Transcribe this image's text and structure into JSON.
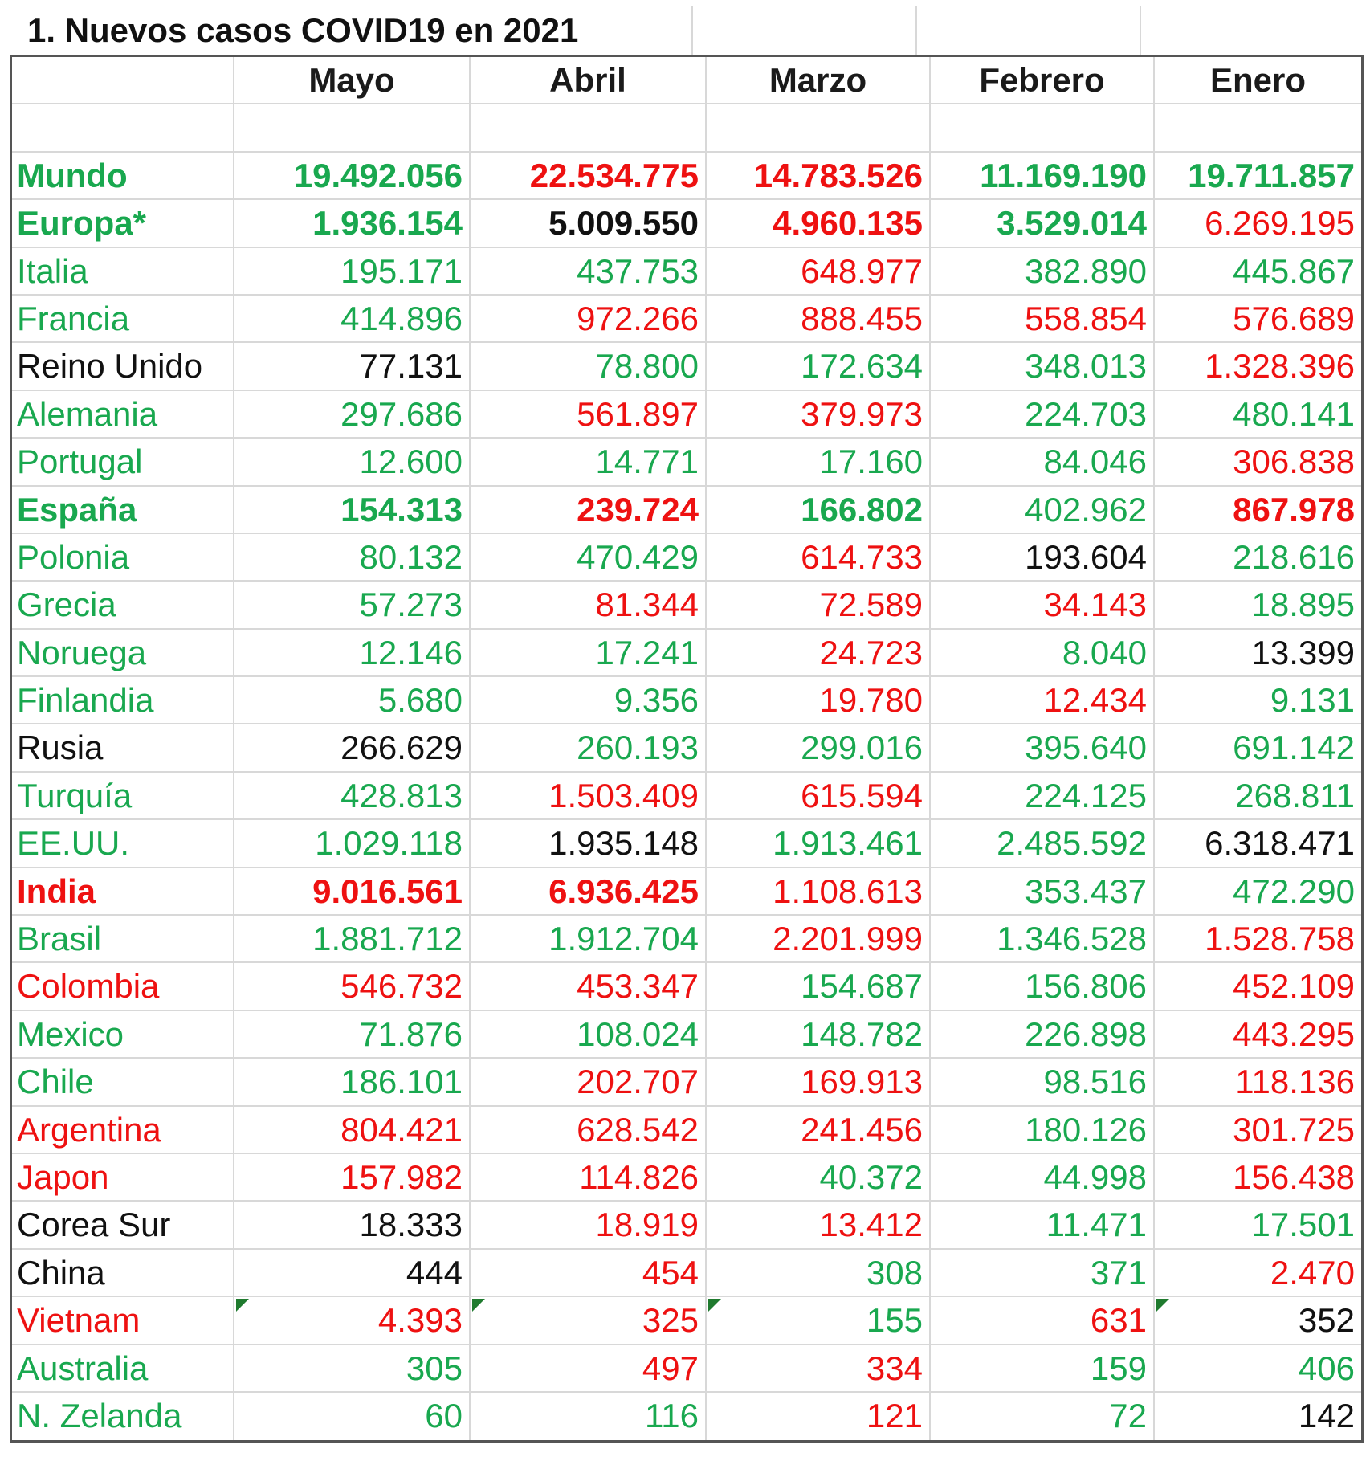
{
  "title": "1. Nuevos casos COVID19 en 2021",
  "columns": [
    "",
    "Mayo",
    "Abril",
    "Marzo",
    "Febrero",
    "Enero"
  ],
  "colors": {
    "green": "#19a84f",
    "red": "#ee1111",
    "black": "#111111"
  },
  "rows": [
    {
      "country": "Mundo",
      "country_color": "g",
      "bold": true,
      "values": [
        "19.492.056",
        "22.534.775",
        "14.783.526",
        "11.169.190",
        "19.711.857"
      ],
      "colors": [
        "g",
        "r",
        "r",
        "g",
        "g"
      ],
      "bolds": [
        true,
        true,
        true,
        true,
        true
      ]
    },
    {
      "country": "Europa*",
      "country_color": "g",
      "bold": true,
      "values": [
        "1.936.154",
        "5.009.550",
        "4.960.135",
        "3.529.014",
        "6.269.195"
      ],
      "colors": [
        "g",
        "k",
        "r",
        "g",
        "r"
      ],
      "bolds": [
        true,
        true,
        true,
        true,
        false
      ]
    },
    {
      "country": "Italia",
      "country_color": "g",
      "bold": false,
      "values": [
        "195.171",
        "437.753",
        "648.977",
        "382.890",
        "445.867"
      ],
      "colors": [
        "g",
        "g",
        "r",
        "g",
        "g"
      ],
      "bolds": [
        false,
        false,
        false,
        false,
        false
      ]
    },
    {
      "country": "Francia",
      "country_color": "g",
      "bold": false,
      "values": [
        "414.896",
        "972.266",
        "888.455",
        "558.854",
        "576.689"
      ],
      "colors": [
        "g",
        "r",
        "r",
        "r",
        "r"
      ],
      "bolds": [
        false,
        false,
        false,
        false,
        false
      ]
    },
    {
      "country": "Reino Unido",
      "country_color": "k",
      "bold": false,
      "values": [
        "77.131",
        "78.800",
        "172.634",
        "348.013",
        "1.328.396"
      ],
      "colors": [
        "k",
        "g",
        "g",
        "g",
        "r"
      ],
      "bolds": [
        false,
        false,
        false,
        false,
        false
      ]
    },
    {
      "country": "Alemania",
      "country_color": "g",
      "bold": false,
      "values": [
        "297.686",
        "561.897",
        "379.973",
        "224.703",
        "480.141"
      ],
      "colors": [
        "g",
        "r",
        "r",
        "g",
        "g"
      ],
      "bolds": [
        false,
        false,
        false,
        false,
        false
      ]
    },
    {
      "country": "Portugal",
      "country_color": "g",
      "bold": false,
      "values": [
        "12.600",
        "14.771",
        "17.160",
        "84.046",
        "306.838"
      ],
      "colors": [
        "g",
        "g",
        "g",
        "g",
        "r"
      ],
      "bolds": [
        false,
        false,
        false,
        false,
        false
      ]
    },
    {
      "country": "España",
      "country_color": "g",
      "bold": true,
      "values": [
        "154.313",
        "239.724",
        "166.802",
        "402.962",
        "867.978"
      ],
      "colors": [
        "g",
        "r",
        "g",
        "g",
        "r"
      ],
      "bolds": [
        true,
        true,
        true,
        false,
        true
      ]
    },
    {
      "country": "Polonia",
      "country_color": "g",
      "bold": false,
      "values": [
        "80.132",
        "470.429",
        "614.733",
        "193.604",
        "218.616"
      ],
      "colors": [
        "g",
        "g",
        "r",
        "k",
        "g"
      ],
      "bolds": [
        false,
        false,
        false,
        false,
        false
      ]
    },
    {
      "country": "Grecia",
      "country_color": "g",
      "bold": false,
      "values": [
        "57.273",
        "81.344",
        "72.589",
        "34.143",
        "18.895"
      ],
      "colors": [
        "g",
        "r",
        "r",
        "r",
        "g"
      ],
      "bolds": [
        false,
        false,
        false,
        false,
        false
      ]
    },
    {
      "country": "Noruega",
      "country_color": "g",
      "bold": false,
      "values": [
        "12.146",
        "17.241",
        "24.723",
        "8.040",
        "13.399"
      ],
      "colors": [
        "g",
        "g",
        "r",
        "g",
        "k"
      ],
      "bolds": [
        false,
        false,
        false,
        false,
        false
      ]
    },
    {
      "country": "Finlandia",
      "country_color": "g",
      "bold": false,
      "values": [
        "5.680",
        "9.356",
        "19.780",
        "12.434",
        "9.131"
      ],
      "colors": [
        "g",
        "g",
        "r",
        "r",
        "g"
      ],
      "bolds": [
        false,
        false,
        false,
        false,
        false
      ]
    },
    {
      "country": "Rusia",
      "country_color": "k",
      "bold": false,
      "values": [
        "266.629",
        "260.193",
        "299.016",
        "395.640",
        "691.142"
      ],
      "colors": [
        "k",
        "g",
        "g",
        "g",
        "g"
      ],
      "bolds": [
        false,
        false,
        false,
        false,
        false
      ]
    },
    {
      "country": "Turquía",
      "country_color": "g",
      "bold": false,
      "values": [
        "428.813",
        "1.503.409",
        "615.594",
        "224.125",
        "268.811"
      ],
      "colors": [
        "g",
        "r",
        "r",
        "g",
        "g"
      ],
      "bolds": [
        false,
        false,
        false,
        false,
        false
      ]
    },
    {
      "country": "EE.UU.",
      "country_color": "g",
      "bold": false,
      "values": [
        "1.029.118",
        "1.935.148",
        "1.913.461",
        "2.485.592",
        "6.318.471"
      ],
      "colors": [
        "g",
        "k",
        "g",
        "g",
        "k"
      ],
      "bolds": [
        false,
        false,
        false,
        false,
        false
      ]
    },
    {
      "country": "India",
      "country_color": "r",
      "bold": true,
      "values": [
        "9.016.561",
        "6.936.425",
        "1.108.613",
        "353.437",
        "472.290"
      ],
      "colors": [
        "r",
        "r",
        "r",
        "g",
        "g"
      ],
      "bolds": [
        true,
        true,
        false,
        false,
        false
      ]
    },
    {
      "country": "Brasil",
      "country_color": "g",
      "bold": false,
      "values": [
        "1.881.712",
        "1.912.704",
        "2.201.999",
        "1.346.528",
        "1.528.758"
      ],
      "colors": [
        "g",
        "g",
        "r",
        "g",
        "r"
      ],
      "bolds": [
        false,
        false,
        false,
        false,
        false
      ]
    },
    {
      "country": "Colombia",
      "country_color": "r",
      "bold": false,
      "values": [
        "546.732",
        "453.347",
        "154.687",
        "156.806",
        "452.109"
      ],
      "colors": [
        "r",
        "r",
        "g",
        "g",
        "r"
      ],
      "bolds": [
        false,
        false,
        false,
        false,
        false
      ]
    },
    {
      "country": "Mexico",
      "country_color": "g",
      "bold": false,
      "values": [
        "71.876",
        "108.024",
        "148.782",
        "226.898",
        "443.295"
      ],
      "colors": [
        "g",
        "g",
        "g",
        "g",
        "r"
      ],
      "bolds": [
        false,
        false,
        false,
        false,
        false
      ]
    },
    {
      "country": "Chile",
      "country_color": "g",
      "bold": false,
      "values": [
        "186.101",
        "202.707",
        "169.913",
        "98.516",
        "118.136"
      ],
      "colors": [
        "g",
        "r",
        "r",
        "g",
        "r"
      ],
      "bolds": [
        false,
        false,
        false,
        false,
        false
      ]
    },
    {
      "country": "Argentina",
      "country_color": "r",
      "bold": false,
      "values": [
        "804.421",
        "628.542",
        "241.456",
        "180.126",
        "301.725"
      ],
      "colors": [
        "r",
        "r",
        "r",
        "g",
        "r"
      ],
      "bolds": [
        false,
        false,
        false,
        false,
        false
      ]
    },
    {
      "country": "Japon",
      "country_color": "r",
      "bold": false,
      "values": [
        "157.982",
        "114.826",
        "40.372",
        "44.998",
        "156.438"
      ],
      "colors": [
        "r",
        "r",
        "g",
        "g",
        "r"
      ],
      "bolds": [
        false,
        false,
        false,
        false,
        false
      ]
    },
    {
      "country": "Corea Sur",
      "country_color": "k",
      "bold": false,
      "values": [
        "18.333",
        "18.919",
        "13.412",
        "11.471",
        "17.501"
      ],
      "colors": [
        "k",
        "r",
        "r",
        "g",
        "g"
      ],
      "bolds": [
        false,
        false,
        false,
        false,
        false
      ]
    },
    {
      "country": "China",
      "country_color": "k",
      "bold": false,
      "values": [
        "444",
        "454",
        "308",
        "371",
        "2.470"
      ],
      "colors": [
        "k",
        "r",
        "g",
        "g",
        "r"
      ],
      "bolds": [
        false,
        false,
        false,
        false,
        false
      ]
    },
    {
      "country": "Vietnam",
      "country_color": "r",
      "bold": false,
      "values": [
        "4.393",
        "325",
        "155",
        "631",
        "352"
      ],
      "colors": [
        "r",
        "r",
        "g",
        "r",
        "k"
      ],
      "bolds": [
        false,
        false,
        false,
        false,
        false
      ],
      "flags": [
        true,
        true,
        true,
        false,
        true
      ]
    },
    {
      "country": "Australia",
      "country_color": "g",
      "bold": false,
      "values": [
        "305",
        "497",
        "334",
        "159",
        "406"
      ],
      "colors": [
        "g",
        "r",
        "r",
        "g",
        "g"
      ],
      "bolds": [
        false,
        false,
        false,
        false,
        false
      ]
    },
    {
      "country": "N. Zelanda",
      "country_color": "g",
      "bold": false,
      "values": [
        "60",
        "116",
        "121",
        "72",
        "142"
      ],
      "colors": [
        "g",
        "g",
        "r",
        "g",
        "k"
      ],
      "bolds": [
        false,
        false,
        false,
        false,
        false
      ]
    }
  ]
}
